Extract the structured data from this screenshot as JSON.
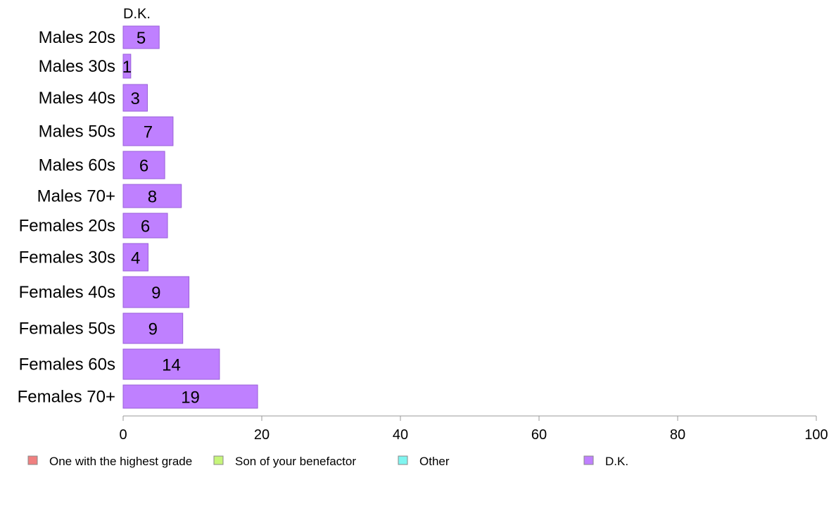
{
  "chart_data": {
    "type": "bar",
    "orientation": "horizontal",
    "stacked": true,
    "categories": [
      "Males 20s",
      "Males 30s",
      "Males 40s",
      "Males 50s",
      "Males 60s",
      "Males 70+",
      "Females 20s",
      "Females 30s",
      "Females 40s",
      "Females 50s",
      "Females 60s",
      "Females 70+"
    ],
    "series": [
      {
        "name": "One with the highest grade",
        "color": "#f08080",
        "values": [
          0,
          0,
          0,
          0,
          0,
          0,
          0,
          0,
          0,
          0,
          0,
          0
        ]
      },
      {
        "name": "Son of your benefactor",
        "color": "#c6f57a",
        "values": [
          0,
          0,
          0,
          0,
          0,
          0,
          0,
          0,
          0,
          0,
          0,
          0
        ]
      },
      {
        "name": "Other",
        "color": "#7ff5f0",
        "values": [
          0,
          0,
          0,
          0,
          0,
          0,
          0,
          0,
          0,
          0,
          0,
          0
        ]
      },
      {
        "name": "D.K.",
        "color": "#bf80ff",
        "values": [
          5,
          1,
          3,
          7,
          6,
          8,
          6,
          4,
          9,
          9,
          14,
          19
        ],
        "display_values": [
          5.2,
          1.1,
          3.5,
          7.2,
          6.0,
          8.4,
          6.4,
          3.6,
          9.5,
          8.6,
          13.9,
          19.4
        ]
      }
    ],
    "column_title": "D.K.",
    "xlim": [
      0,
      100
    ],
    "xticks": [
      0,
      20,
      40,
      60,
      80,
      100
    ],
    "grid": false,
    "legend_position": "bottom",
    "title": "",
    "xlabel": "",
    "ylabel": ""
  }
}
